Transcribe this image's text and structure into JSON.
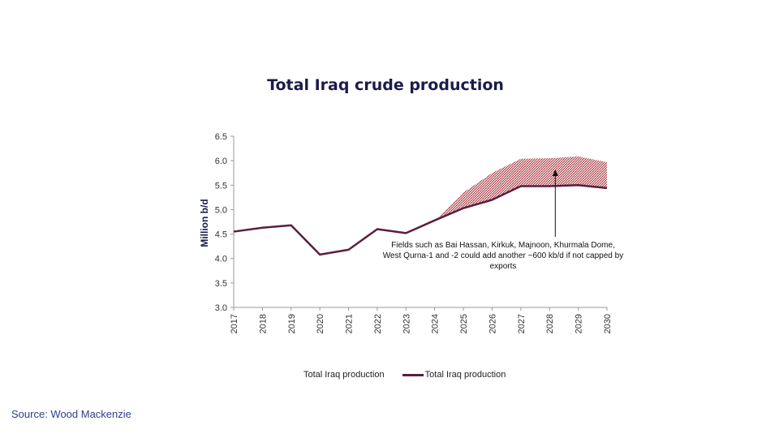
{
  "chart_data": {
    "type": "line",
    "title": "Total Iraq crude production",
    "ylabel": "Million b/d",
    "xlabel": "",
    "ylim": [
      3.0,
      6.5
    ],
    "yticks": [
      "3.0",
      "3.5",
      "4.0",
      "4.5",
      "5.0",
      "5.5",
      "6.0",
      "6.5"
    ],
    "categories": [
      "2017",
      "2018",
      "2019",
      "2020",
      "2021",
      "2022",
      "2023",
      "2024",
      "2025",
      "2026",
      "2027",
      "2028",
      "2029",
      "2030"
    ],
    "series": [
      {
        "name": "Total Iraq production",
        "style": "hatched-area-upper",
        "values": [
          null,
          null,
          null,
          null,
          null,
          null,
          null,
          4.78,
          5.35,
          5.75,
          6.04,
          6.05,
          6.09,
          5.97
        ]
      },
      {
        "name": "Total Iraq production",
        "style": "line",
        "values": [
          4.55,
          4.63,
          4.68,
          4.08,
          4.18,
          4.6,
          4.52,
          4.78,
          5.03,
          5.2,
          5.48,
          5.48,
          5.5,
          5.44
        ]
      }
    ],
    "annotation": "Fields such as Bai Hassan, Kirkuk, Majnoon, Khurmala Dome, West Qurna-1 and -2 could add another ~600 kb/d if not capped by exports",
    "legend_position": "bottom",
    "grid": false,
    "colors": {
      "line": "#5a1f3e",
      "hatch": "#a0323c",
      "title": "#1b1b4b",
      "source": "#2a3f8f"
    }
  },
  "legend": {
    "item1": "Total Iraq production",
    "item2": "Total Iraq production"
  },
  "source": "Source: Wood Mackenzie"
}
